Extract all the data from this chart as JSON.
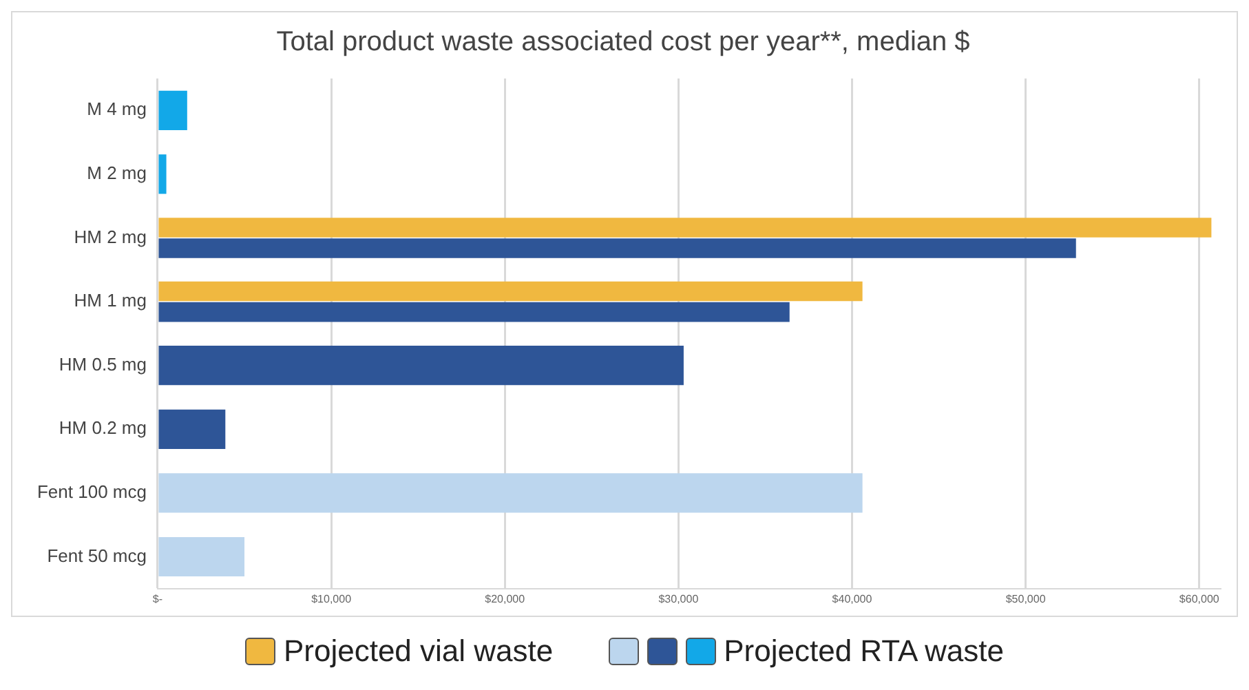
{
  "chart_data": {
    "type": "bar",
    "orientation": "horizontal",
    "title": "Total product waste associated cost per year**, median $",
    "categories": [
      "M 4 mg",
      "M 2 mg",
      "HM 2 mg",
      "HM 1 mg",
      "HM 0.5 mg",
      "HM 0.2 mg",
      "Fent 100 mcg",
      "Fent 50 mcg"
    ],
    "series": [
      {
        "name": "Projected vial waste",
        "color": "#f0b840",
        "values": [
          null,
          null,
          60700,
          40600,
          null,
          null,
          null,
          null
        ]
      },
      {
        "name": "Projected RTA waste",
        "colors": [
          "#12a8e8",
          "#12a8e8",
          "#2e5597",
          "#2e5597",
          "#2e5597",
          "#2e5597",
          "#bcd6ee",
          "#bcd6ee"
        ],
        "values": [
          1700,
          500,
          52900,
          36400,
          30300,
          3900,
          40600,
          5000
        ]
      }
    ],
    "xlim": [
      0,
      61200
    ],
    "xticks": [
      {
        "value": 0,
        "label": "$-"
      },
      {
        "value": 10000,
        "label": "$10,000"
      },
      {
        "value": 20000,
        "label": "$20,000"
      },
      {
        "value": 30000,
        "label": "$30,000"
      },
      {
        "value": 40000,
        "label": "$40,000"
      },
      {
        "value": 50000,
        "label": "$50,000"
      },
      {
        "value": 60000,
        "label": "$60,000"
      }
    ],
    "grid": "x",
    "legend": "bottom"
  }
}
